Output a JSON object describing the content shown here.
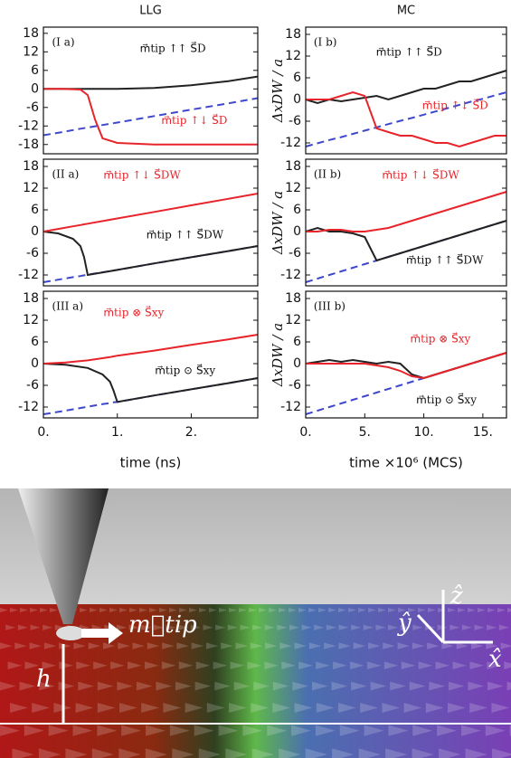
{
  "chart_data": [
    {
      "type": "line",
      "title": "LLG",
      "x": [
        0,
        0.25,
        0.5,
        0.6,
        0.7,
        0.8,
        1,
        1.5,
        2,
        2.5,
        2.9
      ],
      "series": [
        {
          "color": "#3f48cc",
          "style": "dashed",
          "values": [
            -15,
            -14,
            -12.9,
            -12.5,
            -12.1,
            -11.7,
            -10.9,
            -8.8,
            -6.7,
            -4.7,
            -3
          ]
        },
        {
          "color": "#222222",
          "style": "solid",
          "values": [
            0,
            0,
            0,
            0,
            0,
            0,
            0,
            0.3,
            1.2,
            2.5,
            4
          ]
        },
        {
          "color": "#e8242b",
          "style": "solid",
          "values": [
            0,
            0,
            -0.2,
            -2,
            -10,
            -16,
            -17.5,
            -18,
            -18,
            -18,
            -18
          ]
        }
      ],
      "xlim": [
        0,
        2.9
      ],
      "ylim": [
        -21,
        20
      ],
      "yticks": [
        18,
        12,
        6,
        0,
        -6,
        -12,
        -18
      ],
      "annotations": [
        {
          "text": "(I a)",
          "color": "#111111"
        },
        {
          "text": "m⃗tip ↑↑ S⃗D",
          "color": "#111111"
        },
        {
          "text": "m⃗tip ↑↓ S⃗D",
          "color": "#e8242b"
        }
      ]
    },
    {
      "type": "line",
      "title": "MC",
      "x": [
        0,
        1,
        2,
        3,
        4,
        5,
        6,
        7,
        8,
        9,
        10,
        11,
        12,
        13,
        14,
        15,
        16,
        17
      ],
      "series": [
        {
          "color": "#3f48cc",
          "style": "dashed",
          "values": [
            -13,
            -12.1,
            -11.2,
            -10.4,
            -9.5,
            -8.6,
            -7.7,
            -6.8,
            -5.9,
            -5.1,
            -4.2,
            -3.3,
            -2.4,
            -1.5,
            -0.6,
            0.2,
            1.1,
            2
          ]
        },
        {
          "color": "#222222",
          "style": "solid",
          "values": [
            0,
            -1,
            0,
            -0.5,
            0,
            0.5,
            1,
            0,
            1,
            2,
            3,
            3,
            4,
            5,
            5,
            6,
            7,
            8
          ]
        },
        {
          "color": "#e8242b",
          "style": "solid",
          "values": [
            0,
            0,
            0,
            1,
            2,
            1,
            -8,
            -9,
            -10,
            -10,
            -11,
            -12,
            -12,
            -13,
            -12,
            -11,
            -10,
            -10
          ]
        }
      ],
      "xlim": [
        0,
        17
      ],
      "ylim": [
        -15,
        20
      ],
      "yticks": [
        18,
        12,
        6,
        0,
        -6,
        -12
      ],
      "ylabel": "ΔxDW / a",
      "annotations": [
        {
          "text": "(I b)",
          "color": "#111111"
        },
        {
          "text": "m⃗tip ↑↑ S⃗D",
          "color": "#111111"
        },
        {
          "text": "m⃗tip ↑↓ S⃗D",
          "color": "#e8242b"
        }
      ]
    },
    {
      "type": "line",
      "x": [
        0,
        0.2,
        0.4,
        0.5,
        0.55,
        0.6,
        1,
        1.5,
        2,
        2.5,
        2.9
      ],
      "series": [
        {
          "color": "#3f48cc",
          "style": "dashed",
          "values": [
            -14,
            -13.3,
            -12.6,
            -12.3,
            -12.1,
            -11.9,
            -10.6,
            -8.8,
            -7.1,
            -5.4,
            -4
          ]
        },
        {
          "color": "#222222",
          "style": "solid",
          "values": [
            0,
            -0.5,
            -2,
            -4,
            -7,
            -12,
            -10.6,
            -8.8,
            -7.1,
            -5.4,
            -4
          ]
        },
        {
          "color": "#e8242b",
          "style": "solid",
          "values": [
            0,
            0.72,
            1.45,
            1.81,
            1.99,
            2.17,
            3.62,
            5.43,
            7.24,
            9.05,
            10.5
          ]
        }
      ],
      "xlim": [
        0,
        2.9
      ],
      "ylim": [
        -15,
        20
      ],
      "yticks": [
        18,
        12,
        6,
        0,
        -6,
        -12
      ],
      "annotations": [
        {
          "text": "(II a)",
          "color": "#111111"
        },
        {
          "text": "m⃗tip ↑↓ S⃗DW",
          "color": "#e8242b"
        },
        {
          "text": "m⃗tip ↑↑ S⃗DW",
          "color": "#111111"
        }
      ]
    },
    {
      "type": "line",
      "x": [
        0,
        1,
        2,
        3,
        4,
        5,
        6,
        7,
        8,
        9,
        10,
        11,
        12,
        13,
        14,
        15,
        16,
        17
      ],
      "series": [
        {
          "color": "#3f48cc",
          "style": "dashed",
          "values": [
            -14,
            -13,
            -12,
            -11,
            -10,
            -9,
            -8,
            -7,
            -6,
            -5,
            -4,
            -3,
            -2,
            -1,
            0,
            1,
            2,
            3
          ]
        },
        {
          "color": "#222222",
          "style": "solid",
          "values": [
            0,
            1,
            0,
            0,
            -0.5,
            -1.5,
            -8,
            -7,
            -6,
            -5,
            -4,
            -3,
            -2,
            -1,
            0,
            1,
            2,
            3
          ]
        },
        {
          "color": "#e8242b",
          "style": "solid",
          "values": [
            0,
            0,
            0.5,
            0.5,
            0,
            0,
            0.5,
            1,
            2,
            3,
            4,
            5,
            6,
            7,
            8,
            9,
            10,
            11
          ]
        }
      ],
      "xlim": [
        0,
        17
      ],
      "ylim": [
        -15,
        20
      ],
      "yticks": [
        18,
        12,
        6,
        0,
        -6,
        -12
      ],
      "ylabel": "ΔxDW / a",
      "annotations": [
        {
          "text": "(II b)",
          "color": "#111111"
        },
        {
          "text": "m⃗tip ↑↓ S⃗DW",
          "color": "#e8242b"
        },
        {
          "text": "m⃗tip ↑↑ S⃗DW",
          "color": "#111111"
        }
      ]
    },
    {
      "type": "line",
      "x": [
        0,
        0.3,
        0.6,
        0.8,
        0.9,
        0.95,
        1,
        1.5,
        2,
        2.5,
        2.9
      ],
      "series": [
        {
          "color": "#3f48cc",
          "style": "dashed",
          "values": [
            -14,
            -13,
            -11.9,
            -11.2,
            -10.9,
            -10.7,
            -10.6,
            -8.8,
            -7.1,
            -5.4,
            -4
          ]
        },
        {
          "color": "#222222",
          "style": "solid",
          "values": [
            0,
            -0.3,
            -1.2,
            -3,
            -5,
            -7.5,
            -10.6,
            -8.8,
            -7.1,
            -5.4,
            -4
          ]
        },
        {
          "color": "#e8242b",
          "style": "solid",
          "values": [
            0,
            0.3,
            0.9,
            1.5,
            1.8,
            2,
            2.2,
            3.6,
            5.2,
            6.7,
            8
          ]
        }
      ],
      "xlim": [
        0,
        2.9
      ],
      "ylim": [
        -15,
        20
      ],
      "yticks": [
        18,
        12,
        6,
        0,
        -6,
        -12
      ],
      "xticks": [
        {
          "value": 0,
          "label": "0."
        },
        {
          "value": 1,
          "label": "1."
        },
        {
          "value": 2,
          "label": "2."
        }
      ],
      "xlabel": "time (ns)",
      "annotations": [
        {
          "text": "(III a)",
          "color": "#111111"
        },
        {
          "text": "m⃗tip ⊗ S⃗xy",
          "color": "#e8242b"
        },
        {
          "text": "m⃗tip ⊙ S⃗xy",
          "color": "#111111"
        }
      ]
    },
    {
      "type": "line",
      "x": [
        0,
        1,
        2,
        3,
        4,
        5,
        6,
        7,
        8,
        9,
        10,
        11,
        12,
        13,
        14,
        15,
        16,
        17
      ],
      "series": [
        {
          "color": "#3f48cc",
          "style": "dashed",
          "values": [
            -14,
            -13,
            -12,
            -11,
            -10,
            -9,
            -8,
            -7,
            -6,
            -5,
            -4,
            -3,
            -2,
            -1,
            0,
            1,
            2,
            3
          ]
        },
        {
          "color": "#222222",
          "style": "solid",
          "values": [
            0,
            0.5,
            1,
            0.5,
            1,
            0.5,
            0,
            0.5,
            0,
            -3,
            -4,
            -3,
            -2,
            -1,
            0,
            1,
            2,
            3
          ]
        },
        {
          "color": "#e8242b",
          "style": "solid",
          "values": [
            0,
            0,
            0,
            0,
            0,
            0,
            -0.5,
            -1,
            -2,
            -3.5,
            -4,
            -3,
            -2,
            -1,
            0,
            1,
            2,
            3
          ]
        }
      ],
      "xlim": [
        0,
        17
      ],
      "ylim": [
        -15,
        20
      ],
      "yticks": [
        18,
        12,
        6,
        0,
        -6,
        -12
      ],
      "ylabel": "ΔxDW / a",
      "xticks": [
        {
          "value": 0,
          "label": "0."
        },
        {
          "value": 5,
          "label": "5."
        },
        {
          "value": 10,
          "label": "10."
        },
        {
          "value": 15,
          "label": "15."
        }
      ],
      "xlabel": "time ×10⁶ (MCS)",
      "annotations": [
        {
          "text": "(III b)",
          "color": "#111111"
        },
        {
          "text": "m⃗tip ⊗ S⃗xy",
          "color": "#e8242b"
        },
        {
          "text": "m⃗tip ⊙ S⃗xy",
          "color": "#111111"
        }
      ]
    }
  ],
  "illustration": {
    "labels": [
      "m⃗tip",
      "h",
      "ẑ",
      "ŷ",
      "x̂"
    ]
  }
}
